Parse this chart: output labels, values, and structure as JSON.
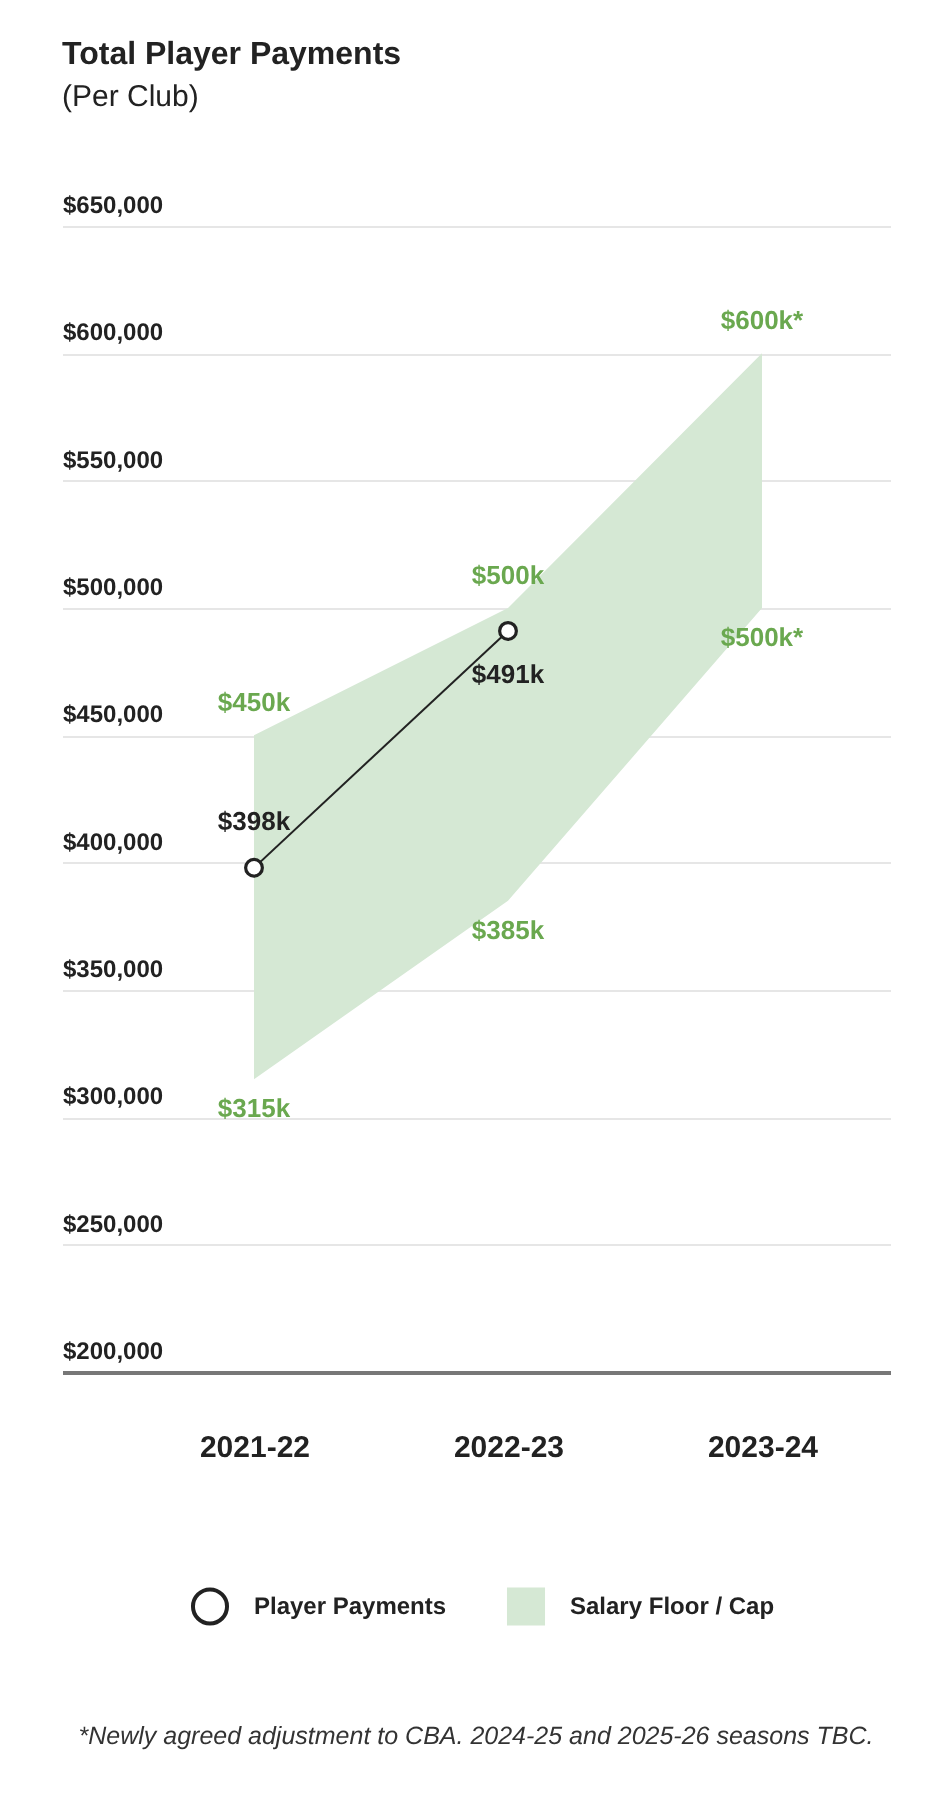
{
  "chart_data": {
    "type": "line",
    "title": "Total Player Payments",
    "subtitle": "(Per Club)",
    "categories": [
      "2021-22",
      "2022-23",
      "2023-24"
    ],
    "series": [
      {
        "name": "Player Payments",
        "color": "#222222",
        "marker": "circle",
        "values": [
          398000,
          491000,
          null
        ],
        "value_labels": [
          "$398k",
          "$491k",
          null
        ]
      },
      {
        "name": "Salary Floor / Cap",
        "type": "area",
        "color": "#d5e8d4",
        "values": [
          null,
          null,
          null
        ],
        "lower": [
          315000,
          385000,
          500000
        ],
        "upper": [
          450000,
          500000,
          600000
        ]
      }
    ],
    "ylim": [
      200000,
      650000
    ],
    "yticks": [
      {
        "value": 200000,
        "label": "$200,000"
      },
      {
        "value": 250000,
        "label": "$250,000"
      },
      {
        "value": 300000,
        "label": "$300,000"
      },
      {
        "value": 350000,
        "label": "$350,000"
      },
      {
        "value": 400000,
        "label": "$400,000"
      },
      {
        "value": 450000,
        "label": "$450,000"
      },
      {
        "value": 500000,
        "label": "$500,000"
      },
      {
        "value": 550000,
        "label": "$550,000"
      },
      {
        "value": 600000,
        "label": "$600,000"
      },
      {
        "value": 650000,
        "label": "$650,000"
      }
    ],
    "grid": "y",
    "legend": "bottom",
    "annotations": [
      {
        "text": "$450k",
        "x": "2021-22",
        "y": 450000
      },
      {
        "text": "$315k",
        "x": "2021-22",
        "y": 315000
      },
      {
        "text": "$500k",
        "x": "2022-23",
        "y": 500000
      },
      {
        "text": "$385k",
        "x": "2022-23",
        "y": 385000
      },
      {
        "text": "$600k*",
        "x": "2023-24",
        "y": 600000
      },
      {
        "text": "$500k*",
        "x": "2023-24",
        "y": 500000
      },
      "*Newly agreed adjustment to CBA. 2024-25 and 2025-26 seasons TBC."
    ]
  }
}
